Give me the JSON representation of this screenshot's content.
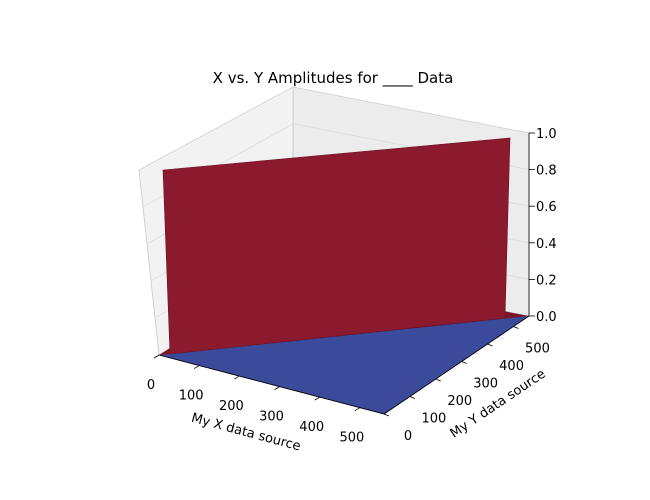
{
  "chart_data": {
    "type": "surface3d",
    "title": "X vs. Y Amplitudes for ____ Data",
    "xlabel": "My X data source",
    "ylabel": "My Y data source",
    "zlabel": "",
    "x_ticks": [
      "0",
      "100",
      "200",
      "300",
      "400",
      "500"
    ],
    "y_ticks": [
      "0",
      "100",
      "200",
      "300",
      "400",
      "500"
    ],
    "z_ticks": [
      "0.0",
      "0.2",
      "0.4",
      "0.6",
      "0.8",
      "1.0"
    ],
    "xlim": [
      0,
      560
    ],
    "ylim": [
      0,
      560
    ],
    "zlim": [
      0,
      1
    ],
    "grid": true,
    "colormap": "coolwarm",
    "colors": {
      "high": "#8b1a2e",
      "low": "#3a4a9a",
      "pane": "#f2f2f2",
      "grid": "#d8d8d8"
    },
    "surface": {
      "description_of_values": "z = 1 where y > x, z = 0 otherwise",
      "x": [
        0,
        560
      ],
      "y": [
        0,
        560
      ],
      "z_high": 1,
      "z_low": 0
    }
  }
}
